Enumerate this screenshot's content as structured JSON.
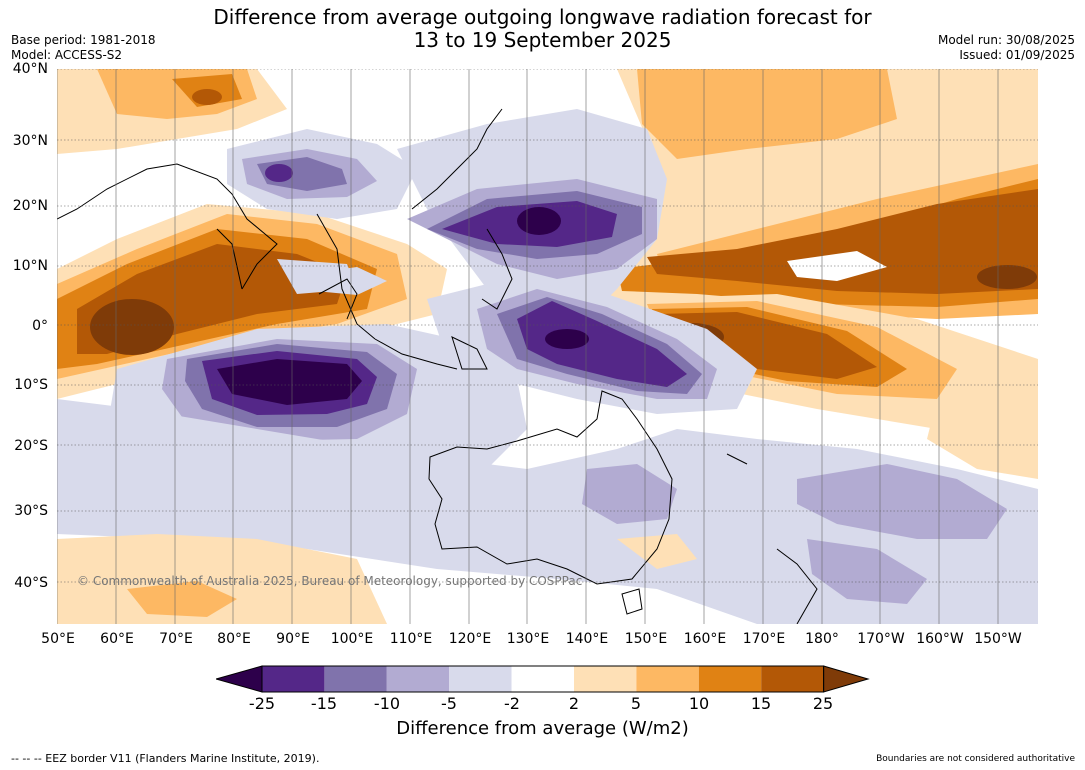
{
  "header": {
    "title_line1": "Difference from average outgoing longwave radiation forecast for",
    "title_line2": "13 to 19 September 2025",
    "base_period": "Base period: 1981-2018",
    "model": "Model: ACCESS-S2",
    "model_run": "Model run: 30/08/2025",
    "issued": "Issued: 01/09/2025"
  },
  "axes": {
    "lat_labels": [
      "40°N",
      "30°N",
      "20°N",
      "10°N",
      "0°",
      "10°S",
      "20°S",
      "30°S",
      "40°S"
    ],
    "lon_labels": [
      "50°E",
      "60°E",
      "70°E",
      "80°E",
      "90°E",
      "100°E",
      "110°E",
      "120°E",
      "130°E",
      "140°E",
      "150°E",
      "160°E",
      "170°E",
      "180°",
      "170°W",
      "160°W",
      "150°W"
    ]
  },
  "map": {
    "copyright": "© Commonwealth of Australia 2025, Bureau of Meteorology, supported by COSPPac",
    "gridlines": true
  },
  "colorbar": {
    "ticks": [
      "-25",
      "-15",
      "-10",
      "-5",
      "-2",
      "2",
      "5",
      "10",
      "15",
      "25"
    ],
    "colors": [
      "#2d004b",
      "#542788",
      "#8073ac",
      "#b2abd2",
      "#d8daeb",
      "#ffffff",
      "#fee0b6",
      "#fdb863",
      "#e08214",
      "#b35806",
      "#7f3b08"
    ],
    "label": "Difference from average (W/m2)"
  },
  "footer": {
    "eez_note": "--  --  -- EEZ border V11 (Flanders Marine Institute, 2019).",
    "disclaimer": "Boundaries are not considered authoritative"
  }
}
